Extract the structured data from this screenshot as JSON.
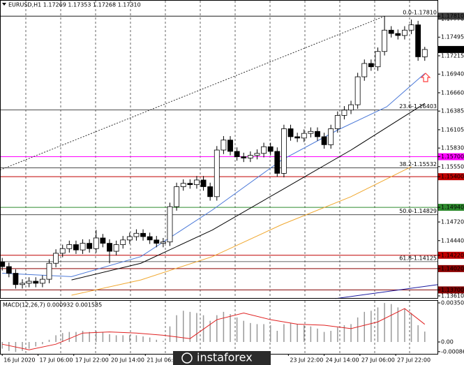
{
  "chart_data": [
    {
      "type": "candlestick",
      "title": "EURUSD,H1  1.17269 1.17353 1.17268 1.17310",
      "xlim": [
        -1,
        195
      ],
      "ylim": [
        1.13568,
        1.18053
      ],
      "yticks": [
        {
          "value": 1.1777,
          "label": "1.17770"
        },
        {
          "value": 1.17495,
          "label": "1.17495"
        },
        {
          "value": 1.17215,
          "label": "1.17215"
        },
        {
          "value": 1.1694,
          "label": "1.16940"
        },
        {
          "value": 1.1666,
          "label": "1.16660"
        },
        {
          "value": 1.16385,
          "label": "1.16385"
        },
        {
          "value": 1.16105,
          "label": "1.16105"
        },
        {
          "value": 1.1583,
          "label": "1.15830"
        },
        {
          "value": 1.1555,
          "label": "1.15550"
        },
        {
          "value": 1.1472,
          "label": "1.14720"
        },
        {
          "value": 1.1444,
          "label": "1.14440"
        },
        {
          "value": 1.1361,
          "label": "1.13610"
        }
      ],
      "x": [
        0,
        3,
        6,
        9,
        12,
        15,
        18,
        21,
        24,
        27,
        30,
        33,
        36,
        39,
        42,
        45,
        48,
        51,
        54,
        57,
        60,
        63,
        66,
        69,
        72,
        75,
        78,
        81,
        84,
        87,
        90,
        93,
        96,
        99,
        102,
        105,
        108,
        111,
        114,
        117,
        120,
        123,
        126,
        129,
        132,
        135,
        138,
        141,
        144,
        147,
        150,
        153,
        156,
        159,
        162,
        165,
        168,
        171,
        174,
        177,
        180,
        183,
        186,
        189
      ],
      "open": [
        1.1412,
        1.1405,
        1.1395,
        1.1378,
        1.138,
        1.1383,
        1.138,
        1.1386,
        1.141,
        1.1425,
        1.1432,
        1.1438,
        1.143,
        1.144,
        1.1432,
        1.1448,
        1.144,
        1.1428,
        1.1438,
        1.1445,
        1.145,
        1.1455,
        1.145,
        1.1445,
        1.144,
        1.1442,
        1.1495,
        1.1525,
        1.153,
        1.1528,
        1.1535,
        1.1525,
        1.151,
        1.158,
        1.1595,
        1.1578,
        1.157,
        1.1568,
        1.1572,
        1.1575,
        1.1585,
        1.1578,
        1.1545,
        1.1612,
        1.16,
        1.1598,
        1.1605,
        1.1608,
        1.16,
        1.1588,
        1.1612,
        1.1632,
        1.164,
        1.1648,
        1.169,
        1.171,
        1.1705,
        1.1728,
        1.176,
        1.1755,
        1.1752,
        1.176,
        1.1768,
        1.172
      ],
      "high": [
        1.1418,
        1.1411,
        1.1401,
        1.1386,
        1.1389,
        1.1389,
        1.1392,
        1.1416,
        1.1431,
        1.1438,
        1.1444,
        1.1444,
        1.1446,
        1.1446,
        1.146,
        1.1454,
        1.1446,
        1.1444,
        1.1451,
        1.1456,
        1.1461,
        1.1461,
        1.1456,
        1.1451,
        1.1448,
        1.1501,
        1.1531,
        1.1536,
        1.1536,
        1.1541,
        1.1541,
        1.1531,
        1.1586,
        1.1601,
        1.1601,
        1.1584,
        1.1576,
        1.1578,
        1.1581,
        1.1591,
        1.1591,
        1.1584,
        1.1618,
        1.1618,
        1.1606,
        1.1611,
        1.1614,
        1.1614,
        1.1606,
        1.1618,
        1.1638,
        1.1646,
        1.1654,
        1.1696,
        1.1716,
        1.1716,
        1.1734,
        1.1781,
        1.1766,
        1.1761,
        1.1766,
        1.1776,
        1.1774,
        1.1735
      ],
      "low": [
        1.1399,
        1.1389,
        1.1372,
        1.1372,
        1.1374,
        1.1374,
        1.1374,
        1.138,
        1.1404,
        1.1419,
        1.1426,
        1.1424,
        1.1424,
        1.1426,
        1.1426,
        1.1434,
        1.141,
        1.1422,
        1.1432,
        1.1439,
        1.1444,
        1.1444,
        1.1439,
        1.1434,
        1.1434,
        1.1436,
        1.1489,
        1.1519,
        1.1522,
        1.1522,
        1.1519,
        1.1504,
        1.1504,
        1.1574,
        1.1572,
        1.1564,
        1.1562,
        1.1562,
        1.1566,
        1.1569,
        1.1572,
        1.154,
        1.1539,
        1.1594,
        1.1592,
        1.1592,
        1.1599,
        1.1594,
        1.1582,
        1.1582,
        1.1606,
        1.1626,
        1.1634,
        1.1642,
        1.1684,
        1.1699,
        1.1699,
        1.1722,
        1.1749,
        1.1746,
        1.1746,
        1.1754,
        1.1714,
        1.1714
      ],
      "close": [
        1.1405,
        1.1395,
        1.1378,
        1.138,
        1.1383,
        1.138,
        1.1386,
        1.141,
        1.1425,
        1.1432,
        1.1438,
        1.143,
        1.144,
        1.1432,
        1.1448,
        1.144,
        1.1428,
        1.1438,
        1.1445,
        1.145,
        1.1455,
        1.145,
        1.1445,
        1.144,
        1.1442,
        1.1495,
        1.1525,
        1.153,
        1.1528,
        1.1535,
        1.1525,
        1.151,
        1.158,
        1.1595,
        1.1578,
        1.157,
        1.1568,
        1.1572,
        1.1575,
        1.1585,
        1.1578,
        1.1545,
        1.1612,
        1.16,
        1.1598,
        1.1605,
        1.1608,
        1.16,
        1.1588,
        1.1612,
        1.1632,
        1.164,
        1.1648,
        1.169,
        1.171,
        1.1705,
        1.1728,
        1.176,
        1.1755,
        1.1752,
        1.176,
        1.1768,
        1.172,
        1.1731
      ],
      "series": [
        {
          "color": "#4a78d8",
          "x": [
            0,
            31,
            62,
            94,
            125,
            150,
            172,
            189
          ],
          "values": [
            1.1395,
            1.139,
            1.142,
            1.149,
            1.1565,
            1.161,
            1.1645,
            1.1695
          ]
        },
        {
          "color": "#000000",
          "x": [
            31,
            62,
            94,
            125,
            156,
            189
          ],
          "values": [
            1.1385,
            1.141,
            1.146,
            1.152,
            1.158,
            1.165
          ]
        },
        {
          "color": "#f0a830",
          "x": [
            31,
            62,
            94,
            125,
            156,
            183
          ],
          "values": [
            1.1362,
            1.1385,
            1.142,
            1.1468,
            1.151,
            1.1555
          ]
        }
      ],
      "trendlines": [
        {
          "color": "#333333",
          "style": "dotted",
          "x": [
            -1,
            171
          ],
          "values": [
            1.155,
            1.1781
          ]
        },
        {
          "color": "#1a1aa0",
          "style": "solid",
          "x": [
            149,
            195
          ],
          "values": [
            1.1357,
            1.1378
          ]
        }
      ],
      "fibo": [
        {
          "value": 1.1781,
          "label": "0.0-1.17810"
        },
        {
          "value": 1.16403,
          "label": "23.6-1.16403"
        },
        {
          "value": 1.15532,
          "label": "38.2-1.15532"
        },
        {
          "value": 1.14829,
          "label": "50.0-1.14829"
        },
        {
          "value": 1.14125,
          "label": "61.8-1.14125"
        }
      ],
      "levels": [
        {
          "value": 1.1781,
          "label": "1.17810",
          "color": "#404040"
        },
        {
          "value": 1.157,
          "label": "1.15700",
          "color": "#ff00ff"
        },
        {
          "value": 1.154,
          "label": "1.15400",
          "color": "#c00000"
        },
        {
          "value": 1.1494,
          "label": "1.14940",
          "color": "#2e8b2e"
        },
        {
          "value": 1.1422,
          "label": "1.14220",
          "color": "#c00000"
        },
        {
          "value": 1.1402,
          "label": "1.14020",
          "color": "#8b0000"
        },
        {
          "value": 1.137,
          "label": "1.13700",
          "color": "#800000"
        }
      ],
      "last": {
        "value": 1.1731,
        "label": "1.17310"
      }
    },
    {
      "type": "macd",
      "title": "MACD(12,26,7) 0.000932 0.001585",
      "xlim": [
        -1,
        195
      ],
      "ylim": [
        -0.001064,
        0.003756
      ],
      "yticks": [
        {
          "value": 0.003506,
          "label": "0.003506"
        },
        {
          "value": 0,
          "label": "0.00"
        },
        {
          "value": -0.000868,
          "label": "-0.000868"
        }
      ],
      "xticks": [
        {
          "value": 0,
          "label": "16 Jul 2020"
        },
        {
          "value": 16,
          "label": "17 Jul 06:00"
        },
        {
          "value": 32,
          "label": "17 Jul 22:00"
        },
        {
          "value": 48,
          "label": "20 Jul 14:00"
        },
        {
          "value": 64,
          "label": "21 Jul 06:00"
        },
        {
          "value": 128,
          "label": "23 Jul 22:00"
        },
        {
          "value": 144,
          "label": "24 Jul 14:00"
        },
        {
          "value": 160,
          "label": "27 Jul 06:00"
        },
        {
          "value": 176,
          "label": "27 Jul 22:00"
        }
      ],
      "x": [
        0,
        3,
        6,
        9,
        12,
        15,
        18,
        21,
        24,
        27,
        30,
        33,
        36,
        39,
        42,
        45,
        48,
        51,
        54,
        57,
        60,
        63,
        66,
        69,
        72,
        75,
        78,
        81,
        84,
        87,
        90,
        93,
        96,
        99,
        102,
        105,
        108,
        111,
        114,
        117,
        120,
        123,
        126,
        129,
        132,
        135,
        138,
        141,
        144,
        147,
        150,
        153,
        156,
        159,
        162,
        165,
        168,
        171,
        174,
        177,
        180,
        183,
        186,
        189
      ],
      "values": [
        -0.0006,
        -0.0008,
        -0.0009,
        -0.0008,
        -0.0006,
        -0.0004,
        -0.0002,
        0.0002,
        0.0006,
        0.0008,
        0.0009,
        0.0009,
        0.001,
        0.0009,
        0.001,
        0.0009,
        0.0007,
        0.0006,
        0.0006,
        0.0006,
        0.0006,
        0.0005,
        0.0004,
        0.0002,
        0.0001,
        0.0014,
        0.0024,
        0.0028,
        0.0027,
        0.0026,
        0.0024,
        0.0019,
        0.0024,
        0.0027,
        0.0025,
        0.0022,
        0.0019,
        0.0017,
        0.0016,
        0.0016,
        0.0015,
        0.001,
        0.0016,
        0.0017,
        0.0016,
        0.0015,
        0.0014,
        0.0012,
        0.0009,
        0.001,
        0.0013,
        0.0015,
        0.0016,
        0.0022,
        0.0027,
        0.0028,
        0.0031,
        0.0035,
        0.0034,
        0.0031,
        0.003,
        0.0026,
        0.0015,
        0.000932
      ],
      "signal": {
        "color": "#e02020",
        "x": [
          0,
          12,
          24,
          36,
          48,
          60,
          72,
          84,
          96,
          108,
          120,
          132,
          144,
          156,
          168,
          180,
          189
        ],
        "values": [
          -0.0002,
          -0.0007,
          -0.0002,
          0.0008,
          0.0009,
          0.0008,
          0.0006,
          0.0003,
          0.002,
          0.0026,
          0.002,
          0.0016,
          0.0015,
          0.0012,
          0.0018,
          0.003,
          0.001585
        ]
      }
    }
  ],
  "watermark": "instaforex"
}
